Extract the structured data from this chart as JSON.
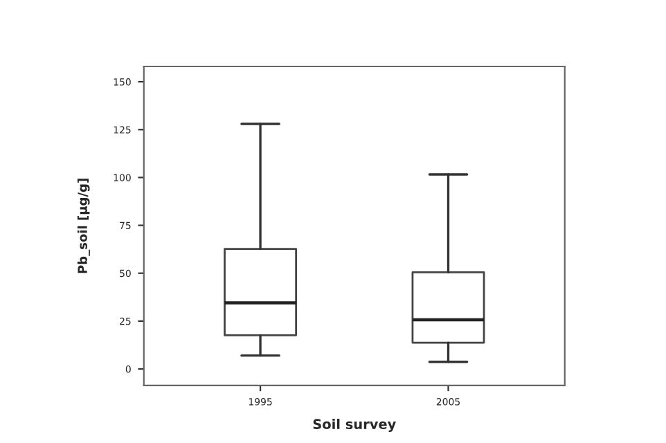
{
  "chart_data": {
    "type": "box",
    "xlabel": "Soil survey",
    "ylabel": "Pb_soil [µg/g]",
    "categories": [
      "1995",
      "2005"
    ],
    "boxes": [
      {
        "low": 7,
        "q1": 17.6,
        "median": 34.5,
        "q3": 62.7,
        "high": 128
      },
      {
        "low": 3.7,
        "q1": 13.7,
        "median": 25.7,
        "q3": 50.5,
        "high": 101.6
      }
    ],
    "ylim": [
      -8.6,
      158
    ],
    "yticks": [
      0,
      25,
      50,
      75,
      100,
      125,
      150
    ],
    "grid": false
  }
}
